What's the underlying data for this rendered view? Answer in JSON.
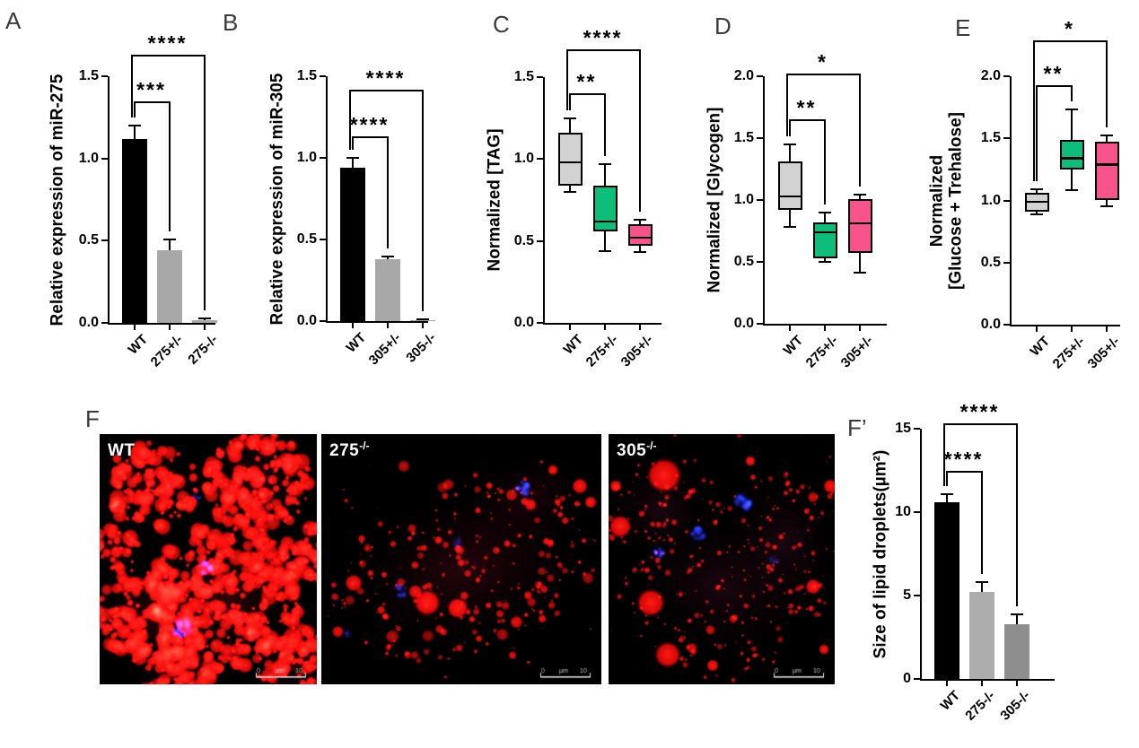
{
  "panel_labels": [
    "A",
    "B",
    "C",
    "D",
    "E",
    "F",
    "F’"
  ],
  "chart_data": [
    {
      "id": "A",
      "type": "bar",
      "ylabel": "Relative expression of miR-275",
      "categories": [
        "WT",
        "275+/-",
        "275-/-"
      ],
      "values": [
        1.12,
        0.44,
        0.015
      ],
      "errors": [
        0.08,
        0.07,
        0.01
      ],
      "colors": [
        "#000000",
        "#a8a8a8",
        "#a8a8a8"
      ],
      "ylim": [
        0,
        1.5
      ],
      "yticks": [
        "0.0",
        "0.5",
        "1.0",
        "1.5"
      ],
      "grid": false,
      "significance": [
        {
          "from": 0,
          "to": 1,
          "label": "***",
          "y": 1.35
        },
        {
          "from": 0,
          "to": 2,
          "label": "****",
          "y": 1.63
        }
      ]
    },
    {
      "id": "B",
      "type": "bar",
      "ylabel": "Relative expression of miR-305",
      "categories": [
        "WT",
        "305+/-",
        "305-/-"
      ],
      "values": [
        0.94,
        0.38,
        0.008
      ],
      "errors": [
        0.06,
        0.015,
        0.005
      ],
      "colors": [
        "#000000",
        "#a8a8a8",
        "#a8a8a8"
      ],
      "ylim": [
        0,
        1.5
      ],
      "yticks": [
        "0.0",
        "0.5",
        "1.0",
        "1.5"
      ],
      "grid": false,
      "significance": [
        {
          "from": 0,
          "to": 1,
          "label": "****",
          "y": 1.13
        },
        {
          "from": 0,
          "to": 2,
          "label": "****",
          "y": 1.42
        }
      ]
    },
    {
      "id": "C",
      "type": "box",
      "ylabel": "Normalized [TAG]",
      "categories": [
        "WT",
        "275+/-",
        "305+/-"
      ],
      "boxes": [
        {
          "lo": 0.8,
          "q1": 0.84,
          "med": 0.98,
          "q3": 1.16,
          "hi": 1.25
        },
        {
          "lo": 0.44,
          "q1": 0.56,
          "med": 0.62,
          "q3": 0.84,
          "hi": 0.97
        },
        {
          "lo": 0.43,
          "q1": 0.47,
          "med": 0.52,
          "q3": 0.6,
          "hi": 0.63
        }
      ],
      "colors": [
        "#d2d2d2",
        "#0fbd7b",
        "#f9538e"
      ],
      "ylim": [
        0,
        1.5
      ],
      "yticks": [
        "0.0",
        "0.5",
        "1.0",
        "1.5"
      ],
      "grid": false,
      "significance": [
        {
          "from": 0,
          "to": 1,
          "label": "**",
          "y": 1.4
        },
        {
          "from": 0,
          "to": 2,
          "label": "****",
          "y": 1.67
        }
      ]
    },
    {
      "id": "D",
      "type": "box",
      "ylabel": "Normalized [Glycogen]",
      "categories": [
        "WT",
        "275+/-",
        "305+/-"
      ],
      "boxes": [
        {
          "lo": 0.78,
          "q1": 0.92,
          "med": 1.03,
          "q3": 1.31,
          "hi": 1.45
        },
        {
          "lo": 0.5,
          "q1": 0.53,
          "med": 0.74,
          "q3": 0.82,
          "hi": 0.9
        },
        {
          "lo": 0.41,
          "q1": 0.57,
          "med": 0.81,
          "q3": 1.01,
          "hi": 1.04
        }
      ],
      "colors": [
        "#d2d2d2",
        "#0fbd7b",
        "#f9538e"
      ],
      "ylim": [
        0,
        2.0
      ],
      "yticks": [
        "0.0",
        "0.5",
        "1.0",
        "1.5",
        "2.0"
      ],
      "grid": false,
      "significance": [
        {
          "from": 0,
          "to": 1,
          "label": "**",
          "y": 1.65
        },
        {
          "from": 0,
          "to": 2,
          "label": "*",
          "y": 2.02
        }
      ]
    },
    {
      "id": "E",
      "type": "box",
      "ylabel": "Normalized\n[Glucose + Trehalose]",
      "categories": [
        "WT",
        "275+/-",
        "305+/-"
      ],
      "boxes": [
        {
          "lo": 0.89,
          "q1": 0.91,
          "med": 0.99,
          "q3": 1.06,
          "hi": 1.09
        },
        {
          "lo": 1.08,
          "q1": 1.25,
          "med": 1.34,
          "q3": 1.49,
          "hi": 1.73
        },
        {
          "lo": 0.95,
          "q1": 1.0,
          "med": 1.29,
          "q3": 1.47,
          "hi": 1.52
        }
      ],
      "colors": [
        "#d2d2d2",
        "#0fbd7b",
        "#f9538e"
      ],
      "ylim": [
        0,
        2.0
      ],
      "yticks": [
        "0.0",
        "0.5",
        "1.0",
        "1.5",
        "2.0"
      ],
      "grid": false,
      "significance": [
        {
          "from": 0,
          "to": 1,
          "label": "**",
          "y": 1.93
        },
        {
          "from": 0,
          "to": 2,
          "label": "*",
          "y": 2.29
        }
      ]
    },
    {
      "id": "Fp",
      "type": "bar",
      "ylabel": "Size of lipid droplets(µm²)",
      "categories": [
        "WT",
        "275-/-",
        "305-/-"
      ],
      "values": [
        10.6,
        5.2,
        3.3
      ],
      "errors": [
        0.45,
        0.6,
        0.55
      ],
      "colors": [
        "#000000",
        "#adadad",
        "#8e8e8e"
      ],
      "ylim": [
        0,
        15
      ],
      "yticks": [
        "0",
        "5",
        "10",
        "15"
      ],
      "grid": false,
      "significance": [
        {
          "from": 0,
          "to": 1,
          "label": "****",
          "y": 12.5
        },
        {
          "from": 0,
          "to": 2,
          "label": "****",
          "y": 15.3
        }
      ]
    }
  ],
  "micrographs": [
    {
      "label": "WT",
      "sup": ""
    },
    {
      "label": "275",
      "sup": "-/-"
    },
    {
      "label": "305",
      "sup": "-/-"
    }
  ],
  "scale_bar": {
    "start": "0",
    "unit": "µm",
    "end": "10"
  }
}
